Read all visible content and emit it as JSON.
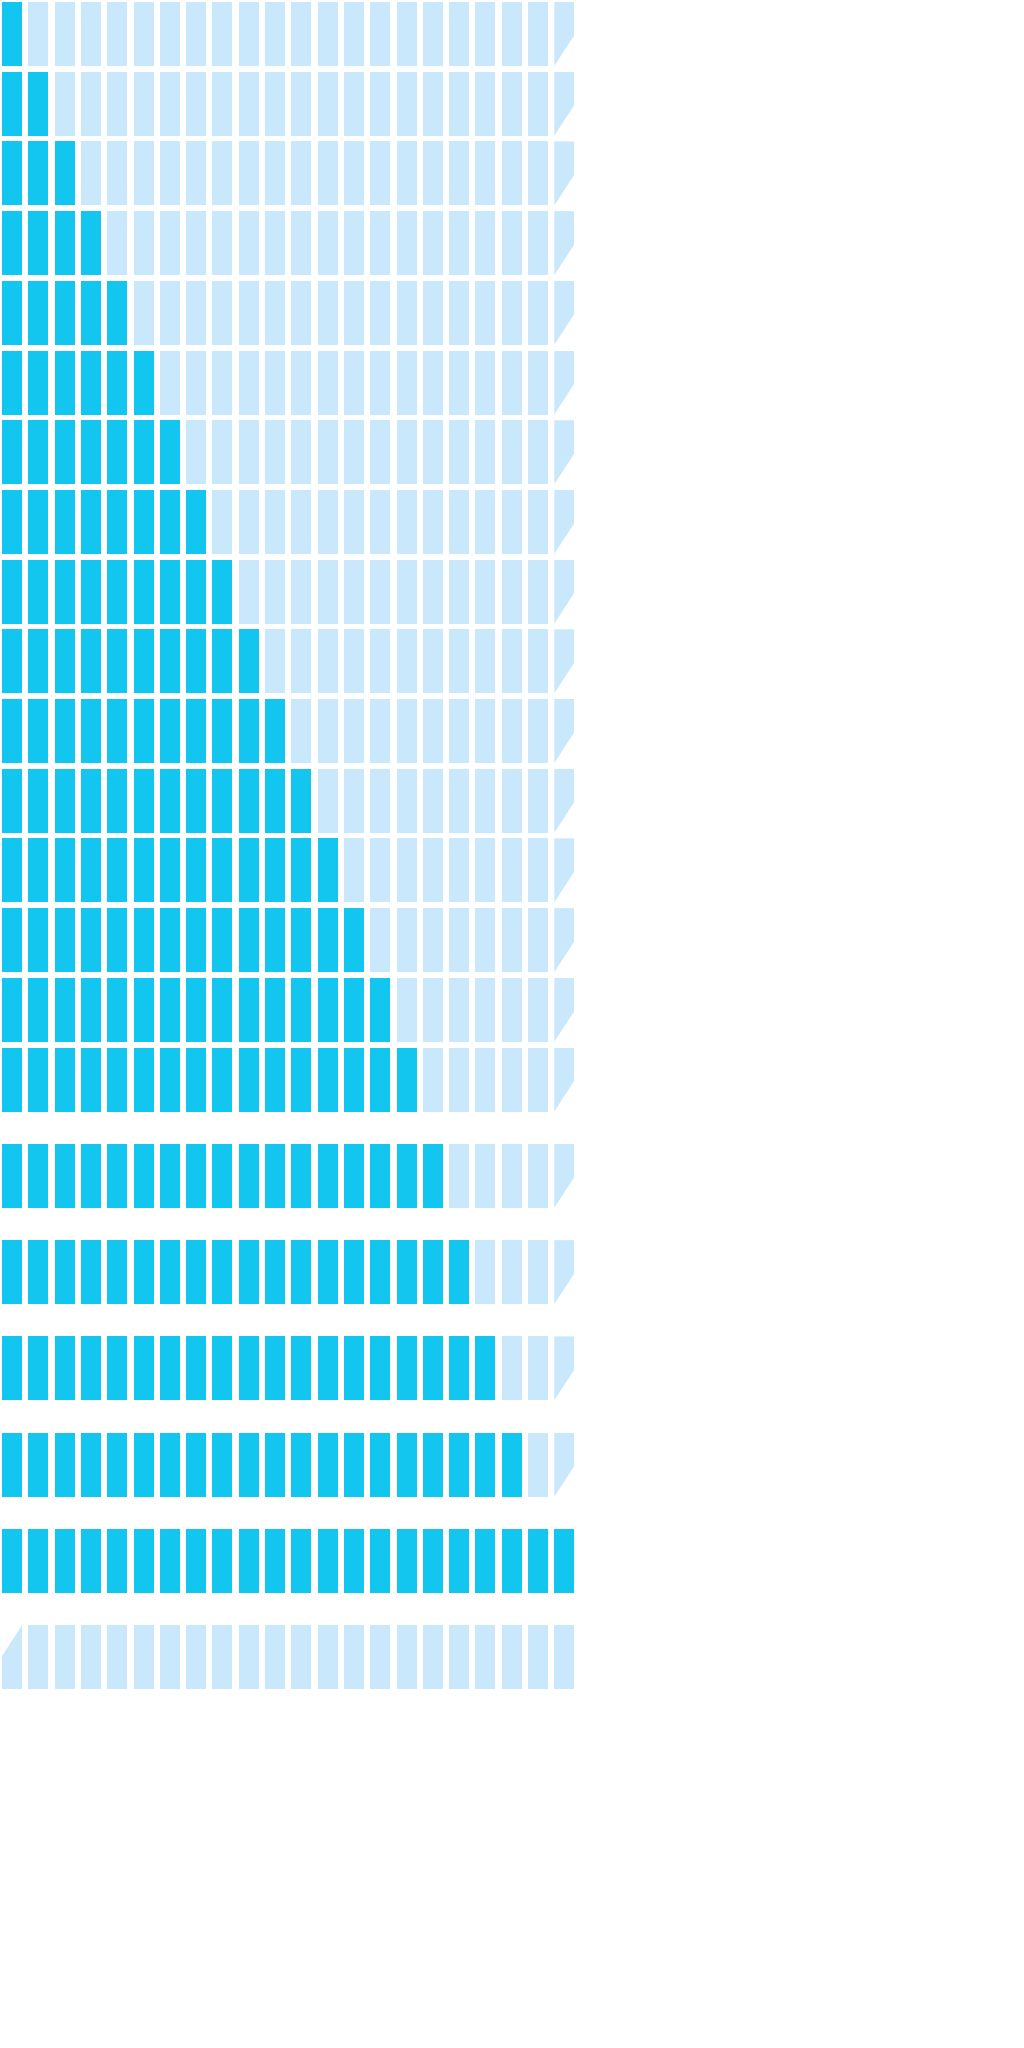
{
  "sprite_sheet": {
    "frame_count": 22,
    "segments_per_frame": 22,
    "colors": {
      "filled": "#12c6ef",
      "empty": "#c9e8fb",
      "background": "#ffffff"
    },
    "frames": [
      {
        "filled": 1,
        "tapered_end": "right"
      },
      {
        "filled": 2,
        "tapered_end": "right"
      },
      {
        "filled": 3,
        "tapered_end": "right"
      },
      {
        "filled": 4,
        "tapered_end": "right"
      },
      {
        "filled": 5,
        "tapered_end": "right"
      },
      {
        "filled": 6,
        "tapered_end": "right"
      },
      {
        "filled": 7,
        "tapered_end": "right"
      },
      {
        "filled": 8,
        "tapered_end": "right"
      },
      {
        "filled": 9,
        "tapered_end": "right"
      },
      {
        "filled": 10,
        "tapered_end": "right"
      },
      {
        "filled": 11,
        "tapered_end": "right"
      },
      {
        "filled": 12,
        "tapered_end": "right"
      },
      {
        "filled": 13,
        "tapered_end": "right"
      },
      {
        "filled": 14,
        "tapered_end": "right"
      },
      {
        "filled": 15,
        "tapered_end": "right"
      },
      {
        "filled": 16,
        "tapered_end": "right"
      },
      {
        "filled": 17,
        "tapered_end": "right"
      },
      {
        "filled": 18,
        "tapered_end": "right"
      },
      {
        "filled": 19,
        "tapered_end": "right"
      },
      {
        "filled": 20,
        "tapered_end": "right"
      },
      {
        "filled": 22,
        "tapered_end": "right"
      },
      {
        "filled": 0,
        "tapered_end": "left"
      }
    ]
  }
}
